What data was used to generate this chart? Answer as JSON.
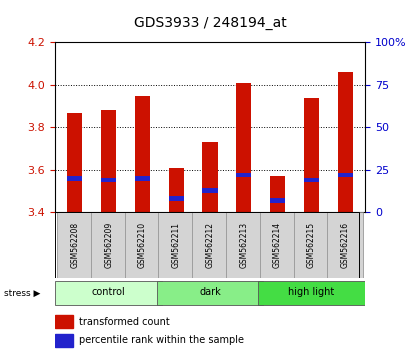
{
  "title": "GDS3933 / 248194_at",
  "samples": [
    "GSM562208",
    "GSM562209",
    "GSM562210",
    "GSM562211",
    "GSM562212",
    "GSM562213",
    "GSM562214",
    "GSM562215",
    "GSM562216"
  ],
  "transformed_counts": [
    3.87,
    3.88,
    3.95,
    3.61,
    3.73,
    4.01,
    3.57,
    3.94,
    4.06
  ],
  "percentile_ranks": [
    20,
    19,
    20,
    8,
    13,
    22,
    7,
    19,
    22
  ],
  "ylim": [
    3.4,
    4.2
  ],
  "yticks_left": [
    3.4,
    3.6,
    3.8,
    4.0,
    4.2
  ],
  "yticks_right": [
    0,
    25,
    50,
    75,
    100
  ],
  "bar_color": "#cc1100",
  "blue_color": "#2222cc",
  "groups": [
    {
      "label": "control",
      "start": 0,
      "end": 3,
      "color": "#ccffcc"
    },
    {
      "label": "dark",
      "start": 3,
      "end": 6,
      "color": "#88ee88"
    },
    {
      "label": "high light",
      "start": 6,
      "end": 9,
      "color": "#44dd44"
    }
  ],
  "stress_label": "stress",
  "legend_red": "transformed count",
  "legend_blue": "percentile rank within the sample",
  "bar_width": 0.45,
  "background_color": "#ffffff",
  "tick_label_color_left": "#cc1100",
  "tick_label_color_right": "#0000cc"
}
